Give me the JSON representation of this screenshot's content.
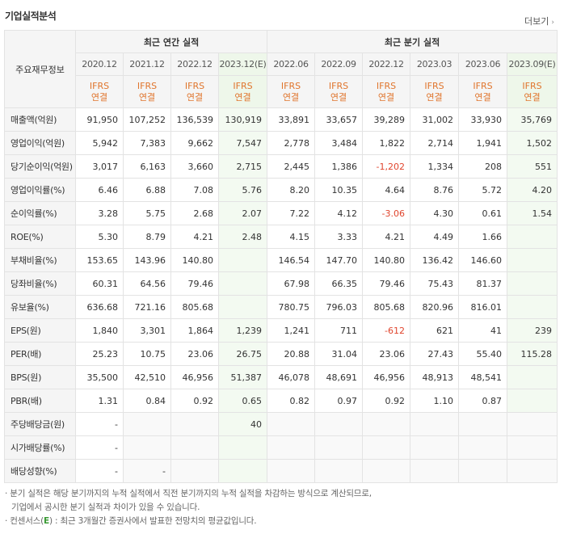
{
  "title": "기업실적분석",
  "more_label": "더보기",
  "corner_label": "주요재무정보",
  "groups": {
    "annual": "최근 연간 실적",
    "quarter": "최근 분기 실적"
  },
  "periods": [
    "2020.12",
    "2021.12",
    "2022.12",
    "2023.12(E)",
    "2022.06",
    "2022.09",
    "2022.12",
    "2023.03",
    "2023.06",
    "2023.09(E)"
  ],
  "ifrs_line1": "IFRS",
  "ifrs_line2": "연결",
  "rows": [
    {
      "label": "매출액(억원)",
      "values": [
        "91,950",
        "107,252",
        "136,539",
        "130,919",
        "33,891",
        "33,657",
        "39,289",
        "31,002",
        "33,930",
        "35,769"
      ]
    },
    {
      "label": "영업이익(억원)",
      "values": [
        "5,942",
        "7,383",
        "9,662",
        "7,547",
        "2,778",
        "3,484",
        "1,822",
        "2,714",
        "1,941",
        "1,502"
      ]
    },
    {
      "label": "당기순이익(억원)",
      "values": [
        "3,017",
        "6,163",
        "3,660",
        "2,715",
        "2,445",
        "1,386",
        "-1,202",
        "1,334",
        "208",
        "551"
      ]
    },
    {
      "label": "영업이익률(%)",
      "values": [
        "6.46",
        "6.88",
        "7.08",
        "5.76",
        "8.20",
        "10.35",
        "4.64",
        "8.76",
        "5.72",
        "4.20"
      ]
    },
    {
      "label": "순이익률(%)",
      "values": [
        "3.28",
        "5.75",
        "2.68",
        "2.07",
        "7.22",
        "4.12",
        "-3.06",
        "4.30",
        "0.61",
        "1.54"
      ]
    },
    {
      "label": "ROE(%)",
      "values": [
        "5.30",
        "8.79",
        "4.21",
        "2.48",
        "4.15",
        "3.33",
        "4.21",
        "4.49",
        "1.66",
        ""
      ]
    },
    {
      "label": "부채비율(%)",
      "values": [
        "153.65",
        "143.96",
        "140.80",
        "",
        "146.54",
        "147.70",
        "140.80",
        "136.42",
        "146.60",
        ""
      ]
    },
    {
      "label": "당좌비율(%)",
      "values": [
        "60.31",
        "64.56",
        "79.46",
        "",
        "67.98",
        "66.35",
        "79.46",
        "75.43",
        "81.37",
        ""
      ]
    },
    {
      "label": "유보율(%)",
      "values": [
        "636.68",
        "721.16",
        "805.68",
        "",
        "780.75",
        "796.03",
        "805.68",
        "820.96",
        "816.01",
        ""
      ]
    },
    {
      "label": "EPS(원)",
      "values": [
        "1,840",
        "3,301",
        "1,864",
        "1,239",
        "1,241",
        "711",
        "-612",
        "621",
        "41",
        "239"
      ]
    },
    {
      "label": "PER(배)",
      "values": [
        "25.23",
        "10.75",
        "23.06",
        "26.75",
        "20.88",
        "31.04",
        "23.06",
        "27.43",
        "55.40",
        "115.28"
      ]
    },
    {
      "label": "BPS(원)",
      "values": [
        "35,500",
        "42,510",
        "46,956",
        "51,387",
        "46,078",
        "48,691",
        "46,956",
        "48,913",
        "48,541",
        ""
      ]
    },
    {
      "label": "PBR(배)",
      "values": [
        "1.31",
        "0.84",
        "0.92",
        "0.65",
        "0.82",
        "0.97",
        "0.92",
        "1.10",
        "0.87",
        ""
      ]
    },
    {
      "label": "주당배당금(원)",
      "values": [
        "-",
        "",
        "",
        "40",
        "",
        "",
        "",
        "",
        "",
        ""
      ]
    },
    {
      "label": "시가배당률(%)",
      "values": [
        "-",
        "",
        "",
        "",
        "",
        "",
        "",
        "",
        "",
        ""
      ]
    },
    {
      "label": "배당성향(%)",
      "values": [
        "-",
        "-",
        "",
        "",
        "",
        "",
        "",
        "",
        "",
        ""
      ]
    }
  ],
  "notes": {
    "line1": "· 분기 실적은 해당 분기까지의 누적 실적에서 직전 분기까지의 누적 실적을 차감하는 방식으로 계산되므로,",
    "line2": "기업에서 공시한 분기 실적과 차이가 있을 수 있습니다.",
    "line3_pre": "· 컨센서스(",
    "line3_e": "E",
    "line3_post": ") : 최근 3개월간 증권사에서 발표한 전망치의 평균값입니다."
  }
}
